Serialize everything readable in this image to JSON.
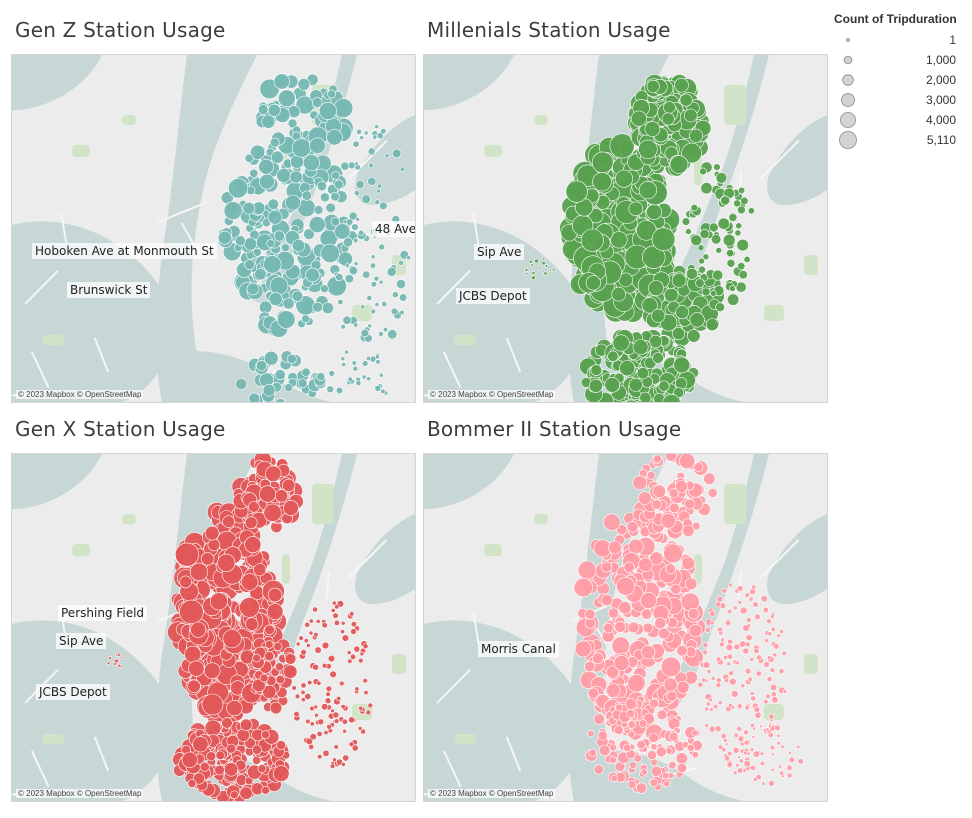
{
  "panels": [
    {
      "title": "Gen Z Station Usage",
      "color": "#76b7b2",
      "labels": [
        "Hoboken Ave at Monmouth St",
        "Brunswick St",
        "48 Ave"
      ],
      "attribution": "© 2023 Mapbox © OpenStreetMap"
    },
    {
      "title": "Millenials Station Usage",
      "color": "#59a14f",
      "labels": [
        "Sip Ave",
        "JCBS Depot"
      ],
      "attribution": "© 2023 Mapbox © OpenStreetMap"
    },
    {
      "title": "Gen X Station Usage",
      "color": "#e15759",
      "labels": [
        "Pershing Field",
        "Sip Ave",
        "JCBS Depot"
      ],
      "attribution": "© 2023 Mapbox © OpenStreetMap"
    },
    {
      "title": "Bommer II Station Usage",
      "color": "#ff9da7",
      "labels": [
        "Morris Canal"
      ],
      "attribution": "© 2023 Mapbox © OpenStreetMap"
    }
  ],
  "legend": {
    "title": "Count of Tripduration",
    "items": [
      "1",
      "1,000",
      "2,000",
      "3,000",
      "4,000",
      "5,110"
    ],
    "size_values": [
      1,
      1000,
      2000,
      3000,
      4000,
      5110
    ]
  },
  "colors": {
    "land": "#ececec",
    "water": "#c7d7d6",
    "park": "#d2e4c8",
    "legend_fill": "#d3d3d3"
  }
}
